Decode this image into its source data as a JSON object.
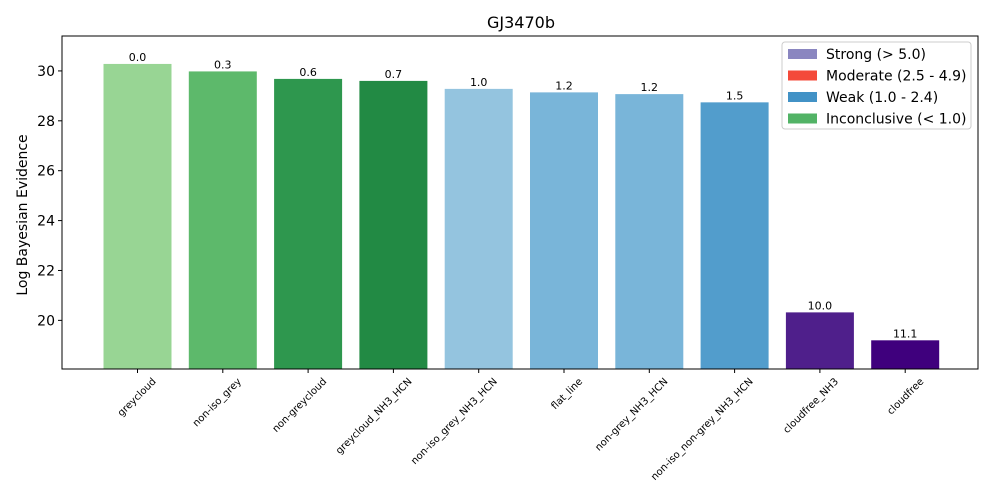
{
  "chart_data": {
    "type": "bar",
    "title": "GJ3470b",
    "xlabel": "",
    "ylabel": "Log Bayesian Evidence",
    "ylim": [
      18.05,
      31.4
    ],
    "yticks": [
      20,
      22,
      24,
      26,
      28,
      30
    ],
    "categories": [
      "greycloud",
      "non-iso_grey",
      "non-greycloud",
      "greycloud_NH3_HCN",
      "non-iso_grey_NH3_HCN",
      "flat_line",
      "non-grey_NH3_HCN",
      "non-iso_non-grey_NH3_HCN",
      "cloudfree_NH3",
      "cloudfree"
    ],
    "values": [
      30.28,
      29.98,
      29.68,
      29.6,
      29.28,
      29.14,
      29.07,
      28.74,
      20.32,
      19.2
    ],
    "bar_labels": [
      "0.0",
      "0.3",
      "0.6",
      "0.7",
      "1.0",
      "1.2",
      "1.2",
      "1.5",
      "10.0",
      "11.1"
    ],
    "bar_colors": [
      "#98d594",
      "#5db96b",
      "#2e974e",
      "#228a44",
      "#94c4df",
      "#79b5d9",
      "#79b5d9",
      "#529dcc",
      "#4f1f8b",
      "#3f007d"
    ],
    "legend": {
      "position": "top-right",
      "entries": [
        {
          "label": "Strong (> 5.0)",
          "color": "#8a86c0"
        },
        {
          "label": "Moderate (2.5 - 4.9)",
          "color": "#f44a3a"
        },
        {
          "label": "Weak (1.0 - 2.4)",
          "color": "#4292c6"
        },
        {
          "label": "Inconclusive (< 1.0)",
          "color": "#52b366"
        }
      ]
    },
    "grid": false
  }
}
